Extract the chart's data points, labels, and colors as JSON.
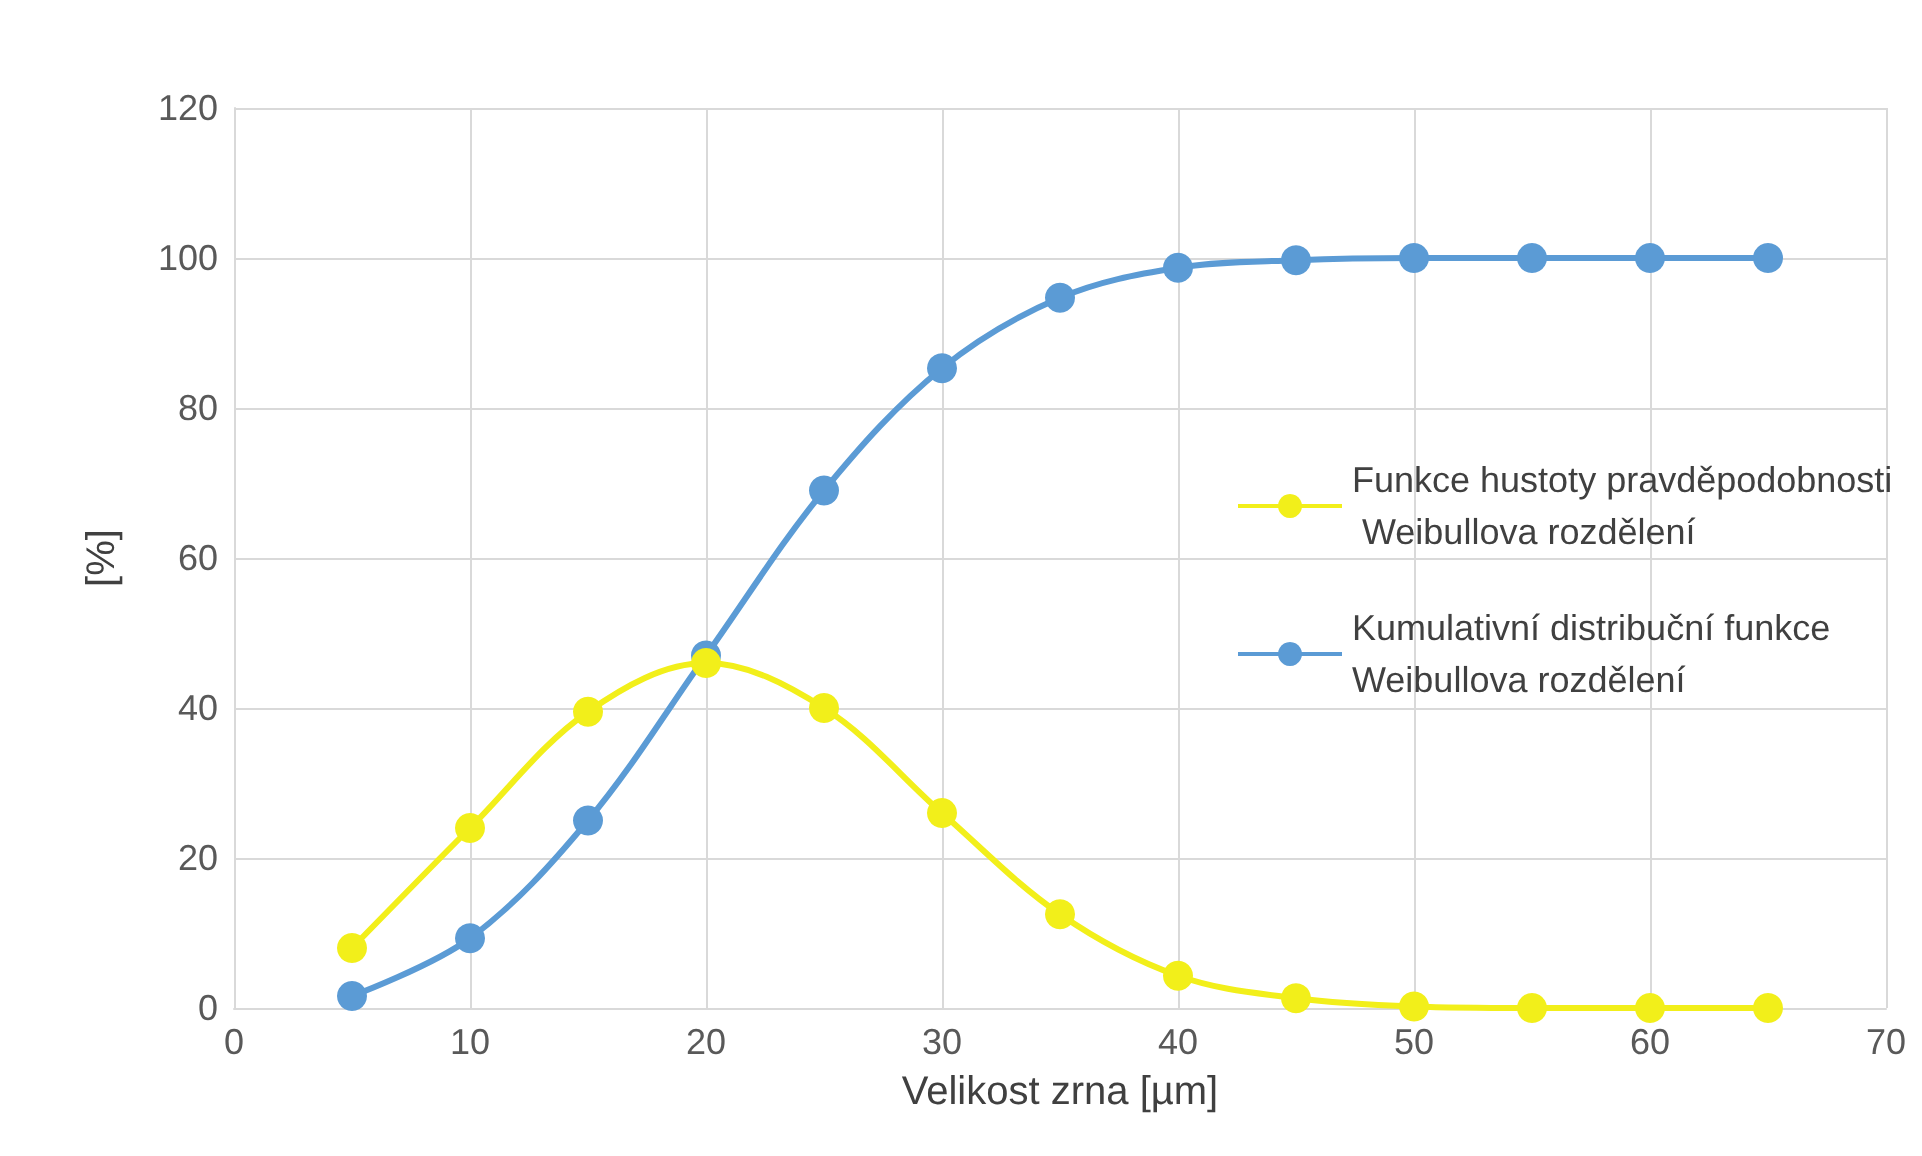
{
  "chart_data": {
    "type": "line",
    "xlabel": "Velikost zrna [µm]",
    "ylabel": "[%]",
    "x": [
      5,
      10,
      15,
      20,
      25,
      30,
      35,
      40,
      45,
      50,
      55,
      60,
      65
    ],
    "series": [
      {
        "name": "Funkce hustoty pravděpodobnosti Weibullova rozdělení",
        "color": "#f2ef1a",
        "values": [
          8,
          24,
          39.5,
          46,
          40,
          26,
          12.5,
          4.3,
          1.3,
          0.2,
          0,
          0,
          0
        ]
      },
      {
        "name": "Kumulativní distribuční funkce Weibullova rozdělení",
        "color": "#5b9bd5",
        "values": [
          1.6,
          9.3,
          25,
          47,
          69,
          85.3,
          94.7,
          98.7,
          99.7,
          100,
          100,
          100,
          100
        ]
      }
    ],
    "xlim": [
      0,
      70
    ],
    "xticks": [
      0,
      10,
      20,
      30,
      40,
      50,
      60,
      70
    ],
    "ylim": [
      0,
      120
    ],
    "yticks": [
      0,
      20,
      40,
      60,
      80,
      100,
      120
    ],
    "grid": true,
    "legend": "right",
    "marker": "circle",
    "line_style": "solid"
  }
}
